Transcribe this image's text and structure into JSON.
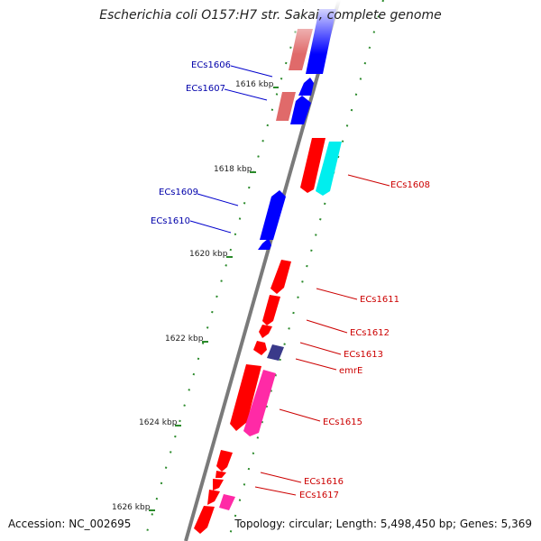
{
  "title": "Escherichia coli O157:H7 str. Sakai, complete genome",
  "footer": {
    "accession": "Accession: NC_002695",
    "summary": "Topology: circular; Length: 5,498,450 bp; Genes: 5,369"
  },
  "colors": {
    "cds": "#ff0000",
    "cds_dark": "#cc0000",
    "reverse_cds": "#0000ff",
    "reverse_cds_dark": "#0000aa",
    "pink_feature": "#e06a6a",
    "cyan_feature": "#00f0f0",
    "magenta_feature": "#ff2aa6",
    "navy_feature": "#3a3a8a",
    "backbone": "#7a7a7a",
    "tick": "#2b8a2b",
    "label_forward": "#cc0000",
    "label_reverse": "#0000aa"
  },
  "scale_labels": [
    "1616 kbp",
    "1618 kbp",
    "1620 kbp",
    "1622 kbp",
    "1624 kbp",
    "1626 kbp"
  ],
  "gene_labels": {
    "left": [
      "ECs1606",
      "ECs1607",
      "ECs1609",
      "ECs1610"
    ],
    "right": [
      "ECs1608",
      "ECs1611",
      "ECs1612",
      "ECs1613",
      "emrE",
      "ECs1615",
      "ECs1616",
      "ECs1617"
    ]
  }
}
